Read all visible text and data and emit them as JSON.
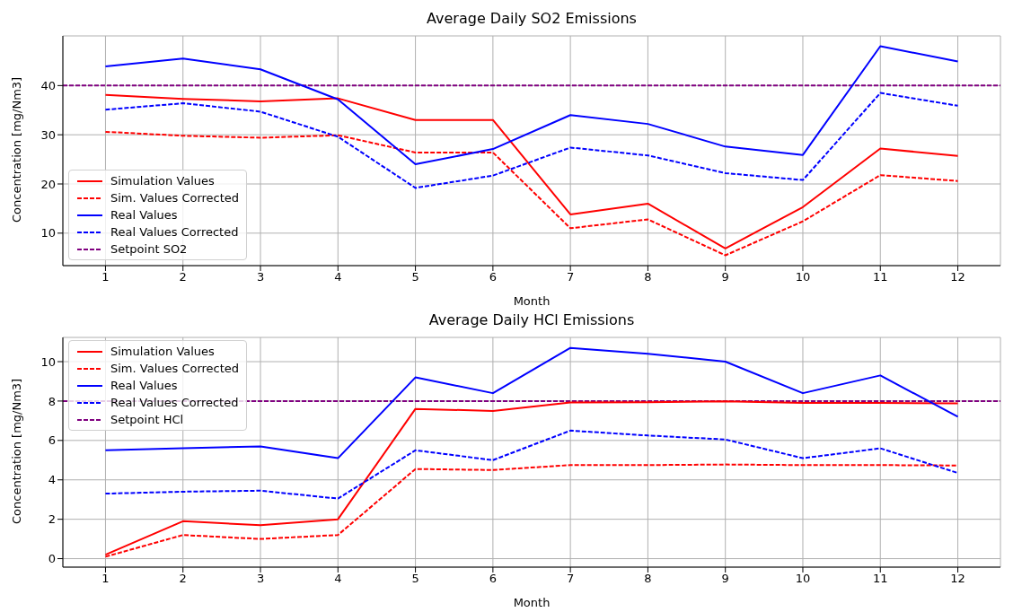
{
  "chart_data": [
    {
      "type": "line",
      "title": "Average Daily SO2 Emissions",
      "xlabel": "Month",
      "ylabel": "Concentration [mg/Nm3]",
      "x": [
        1,
        2,
        3,
        4,
        5,
        6,
        7,
        8,
        9,
        10,
        11,
        12
      ],
      "series": [
        {
          "name": "Simulation Values",
          "color": "#ff0000",
          "line_style": "solid",
          "values": [
            38.1,
            37.3,
            36.8,
            37.4,
            33.0,
            33.0,
            13.8,
            16.0,
            6.9,
            15.3,
            27.2,
            25.7
          ]
        },
        {
          "name": "Sim. Values Corrected",
          "color": "#ff0000",
          "line_style": "dashed",
          "values": [
            30.6,
            29.8,
            29.4,
            29.9,
            26.4,
            26.4,
            11.0,
            12.8,
            5.5,
            12.4,
            21.8,
            20.6
          ]
        },
        {
          "name": "Real Values",
          "color": "#0000ff",
          "line_style": "solid",
          "values": [
            43.9,
            45.5,
            43.3,
            37.2,
            24.0,
            27.1,
            34.0,
            32.2,
            27.6,
            25.9,
            48.0,
            44.9
          ]
        },
        {
          "name": "Real Values Corrected",
          "color": "#0000ff",
          "line_style": "dashed",
          "values": [
            35.1,
            36.4,
            34.7,
            29.6,
            19.2,
            21.7,
            27.4,
            25.8,
            22.2,
            20.8,
            38.5,
            35.9
          ]
        }
      ],
      "ref_lines": [
        {
          "axis": "y",
          "value": 40,
          "label": "Setpoint SO2",
          "color": "#800080",
          "line_style": "dashed"
        }
      ],
      "xlim": [
        0.45,
        12.55
      ],
      "xticks": [
        1,
        2,
        3,
        4,
        5,
        6,
        7,
        8,
        9,
        10,
        11,
        12
      ],
      "ylim": [
        3.4,
        50.1
      ],
      "yticks": [
        10,
        20,
        30,
        40
      ],
      "grid": true,
      "legend": "bottom left"
    },
    {
      "type": "line",
      "title": "Average Daily HCl Emissions",
      "xlabel": "Month",
      "ylabel": "Concentration [mg/Nm3]",
      "x": [
        1,
        2,
        3,
        4,
        5,
        6,
        7,
        8,
        9,
        10,
        11,
        12
      ],
      "series": [
        {
          "name": "Simulation Values",
          "color": "#ff0000",
          "line_style": "solid",
          "values": [
            0.2,
            1.9,
            1.7,
            2.0,
            7.6,
            7.5,
            7.93,
            7.94,
            7.98,
            7.9,
            7.9,
            7.88
          ]
        },
        {
          "name": "Sim. Values Corrected",
          "color": "#ff0000",
          "line_style": "dashed",
          "values": [
            0.1,
            1.2,
            1.0,
            1.2,
            4.55,
            4.5,
            4.75,
            4.75,
            4.78,
            4.75,
            4.75,
            4.73
          ]
        },
        {
          "name": "Real Values",
          "color": "#0000ff",
          "line_style": "solid",
          "values": [
            5.5,
            5.6,
            5.7,
            5.1,
            9.2,
            8.4,
            10.7,
            10.4,
            10.0,
            8.4,
            9.3,
            7.2
          ]
        },
        {
          "name": "Real Values Corrected",
          "color": "#0000ff",
          "line_style": "dashed",
          "values": [
            3.3,
            3.4,
            3.45,
            3.05,
            5.5,
            5.0,
            6.5,
            6.25,
            6.05,
            5.1,
            5.6,
            4.35
          ]
        }
      ],
      "ref_lines": [
        {
          "axis": "y",
          "value": 8,
          "label": "Setpoint HCl",
          "color": "#800080",
          "line_style": "dashed"
        }
      ],
      "xlim": [
        0.45,
        12.55
      ],
      "xticks": [
        1,
        2,
        3,
        4,
        5,
        6,
        7,
        8,
        9,
        10,
        11,
        12
      ],
      "ylim": [
        -0.43,
        11.23
      ],
      "yticks": [
        0,
        2,
        4,
        6,
        8,
        10
      ],
      "grid": true,
      "legend": "top left"
    }
  ]
}
